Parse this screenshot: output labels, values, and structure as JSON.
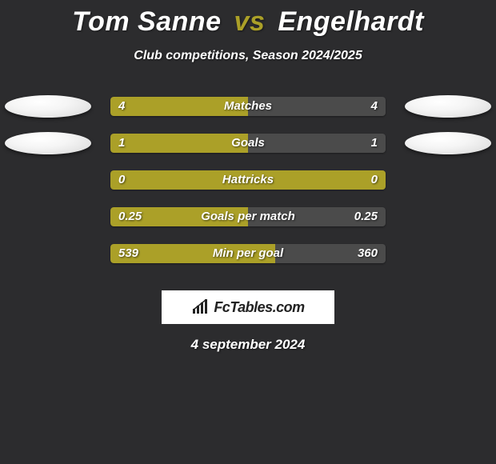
{
  "background_color": "#2c2c2e",
  "title": {
    "player1": "Tom Sanne",
    "vs": "vs",
    "player2": "Engelhardt",
    "p1_color": "#ffffff",
    "p2_color": "#ffffff",
    "vs_color": "#aba028",
    "fontsize": 34
  },
  "subtitle": {
    "text": "Club competitions, Season 2024/2025",
    "color": "#ffffff",
    "fontsize": 16
  },
  "bar_style": {
    "track_color": "#3a3a3c",
    "left_color": "#aba028",
    "right_color": "#4b4b4b",
    "track_width": 344,
    "track_height": 24,
    "label_color": "#ffffff",
    "label_fontsize": 15,
    "value_color": "#ffffff",
    "value_fontsize": 15
  },
  "oval_style": {
    "width": 108,
    "height": 28,
    "color": "#f0f0f0"
  },
  "rows": [
    {
      "label": "Matches",
      "left_val": "4",
      "right_val": "4",
      "left_pct": 50,
      "right_pct": 50,
      "show_ovals": true
    },
    {
      "label": "Goals",
      "left_val": "1",
      "right_val": "1",
      "left_pct": 50,
      "right_pct": 50,
      "show_ovals": true
    },
    {
      "label": "Hattricks",
      "left_val": "0",
      "right_val": "0",
      "left_pct": 100,
      "right_pct": 0,
      "show_ovals": false
    },
    {
      "label": "Goals per match",
      "left_val": "0.25",
      "right_val": "0.25",
      "left_pct": 50,
      "right_pct": 50,
      "show_ovals": false
    },
    {
      "label": "Min per goal",
      "left_val": "539",
      "right_val": "360",
      "left_pct": 60,
      "right_pct": 40,
      "show_ovals": false
    }
  ],
  "brand": {
    "text": "FcTables.com",
    "box_bg": "#ffffff",
    "text_color": "#222222",
    "fontsize": 18
  },
  "date": {
    "text": "4 september 2024",
    "color": "#ffffff",
    "fontsize": 17
  }
}
